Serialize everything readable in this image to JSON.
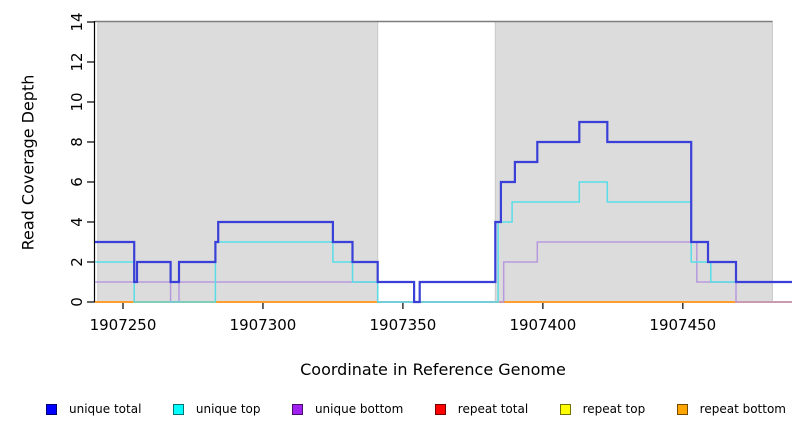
{
  "chart_data": {
    "type": "line",
    "subtype": "step-coverage-plot",
    "title": "",
    "xlabel": "Coordinate in Reference Genome",
    "ylabel": "Read Coverage Depth",
    "xlim": [
      1907240,
      1907489
    ],
    "ylim": [
      0,
      14
    ],
    "xticks": [
      1907250,
      1907300,
      1907350,
      1907400,
      1907450
    ],
    "yticks": [
      0,
      2,
      4,
      6,
      8,
      10,
      12,
      14
    ],
    "grid": false,
    "legend_position": "bottom",
    "shaded_regions": {
      "color": "#dcdcdc",
      "border_color": "#c9c9c9",
      "ranges": [
        [
          1907241,
          1907341
        ],
        [
          1907383,
          1907482
        ]
      ]
    },
    "top_rule": {
      "y": 14,
      "color": "#7d7d7d"
    },
    "axis_color": "#000000",
    "series": [
      {
        "name": "repeat top",
        "line_color": "#f0ef2f",
        "line_width": 1.4,
        "segments": [
          [
            [
              1907240,
              0
            ],
            [
              1907489,
              0
            ]
          ]
        ]
      },
      {
        "name": "repeat total",
        "line_color": "#c43a5a",
        "line_width": 1.6,
        "segments": [
          [
            [
              1907341,
              0
            ],
            [
              1907383,
              0
            ]
          ]
        ]
      },
      {
        "name": "repeat bottom",
        "line_color": "#ff9d2e",
        "line_width": 2,
        "segments": [
          [
            [
              1907240,
              0
            ],
            [
              1907341,
              0
            ]
          ],
          [
            [
              1907383,
              0
            ],
            [
              1907489,
              0
            ]
          ]
        ]
      },
      {
        "name": "unique bottom",
        "line_color": "#b79ade",
        "line_width": 1.5,
        "segments": [
          [
            [
              1907240,
              1
            ],
            [
              1907267,
              0
            ],
            [
              1907270,
              1
            ],
            [
              1907341,
              0
            ],
            [
              1907386,
              2
            ],
            [
              1907398,
              3
            ],
            [
              1907455,
              1
            ],
            [
              1907469,
              0
            ],
            [
              1907489,
              0
            ]
          ]
        ]
      },
      {
        "name": "unique top",
        "line_color": "#58dde6",
        "line_width": 1.5,
        "segments": [
          [
            [
              1907240,
              2
            ],
            [
              1907254,
              0
            ],
            [
              1907283,
              3
            ],
            [
              1907325,
              2
            ],
            [
              1907332,
              1
            ],
            [
              1907341,
              0
            ],
            [
              1907384,
              4
            ],
            [
              1907389,
              5
            ],
            [
              1907413,
              6
            ],
            [
              1907423,
              5
            ],
            [
              1907453,
              2
            ],
            [
              1907460,
              1
            ],
            [
              1907489,
              1
            ]
          ]
        ]
      },
      {
        "name": "unique total",
        "line_color": "#3a3fd8",
        "line_width": 2.2,
        "segments": [
          [
            [
              1907240,
              3
            ],
            [
              1907254,
              1
            ],
            [
              1907255,
              2
            ],
            [
              1907267,
              1
            ],
            [
              1907270,
              2
            ],
            [
              1907283,
              3
            ],
            [
              1907284,
              4
            ],
            [
              1907325,
              3
            ],
            [
              1907332,
              2
            ],
            [
              1907341,
              1
            ],
            [
              1907354,
              0
            ],
            [
              1907356,
              1
            ],
            [
              1907383,
              4
            ],
            [
              1907385,
              6
            ],
            [
              1907390,
              7
            ],
            [
              1907398,
              8
            ],
            [
              1907413,
              9
            ],
            [
              1907423,
              8
            ],
            [
              1907453,
              3
            ],
            [
              1907459,
              2
            ],
            [
              1907469,
              1
            ],
            [
              1907489,
              1
            ]
          ]
        ]
      }
    ],
    "legend": [
      {
        "label": "unique total",
        "swatch_color": "#0000ff"
      },
      {
        "label": "unique top",
        "swatch_color": "#00ffff"
      },
      {
        "label": "unique bottom",
        "swatch_color": "#a020f0"
      },
      {
        "label": "repeat total",
        "swatch_color": "#ff0000"
      },
      {
        "label": "repeat top",
        "swatch_color": "#ffff00"
      },
      {
        "label": "repeat bottom",
        "swatch_color": "#ffa500"
      }
    ]
  }
}
